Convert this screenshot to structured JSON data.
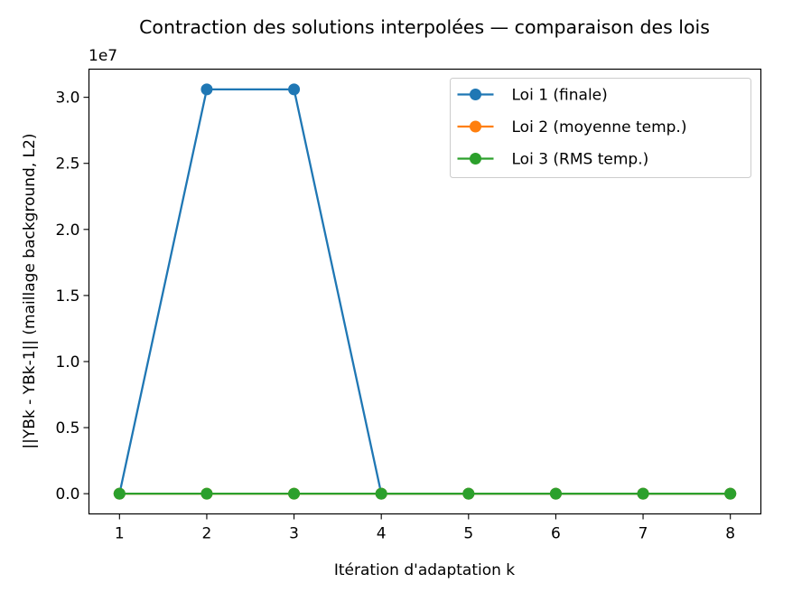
{
  "chart_data": {
    "type": "line",
    "title": "Contraction des solutions interpolées — comparaison des lois",
    "xlabel": "Itération d'adaptation k",
    "ylabel": "||YBk - YBk-1|| (maillage background, L2)",
    "y_offset_text": "1e7",
    "y_multiplier": 10000000,
    "x": [
      1,
      2,
      3,
      4,
      5,
      6,
      7,
      8
    ],
    "x_ticks": [
      "1",
      "2",
      "3",
      "4",
      "5",
      "6",
      "7",
      "8"
    ],
    "y_ticks": [
      "0.0",
      "0.5",
      "1.0",
      "1.5",
      "2.0",
      "2.5",
      "3.0"
    ],
    "xlim": [
      0.65,
      8.35
    ],
    "ylim": [
      -1530000,
      32130000
    ],
    "grid": false,
    "legend_position": "top-right",
    "series": [
      {
        "name": "Loi 1 (finale)",
        "color": "#1f77b4",
        "marker": "circle",
        "values": [
          0,
          30600000,
          30600000,
          0,
          0,
          0,
          0,
          0
        ]
      },
      {
        "name": "Loi 2 (moyenne temp.)",
        "color": "#ff7f0e",
        "marker": "circle",
        "values": [
          0,
          0,
          0,
          0,
          0,
          0,
          0,
          0
        ]
      },
      {
        "name": "Loi 3 (RMS temp.)",
        "color": "#2ca02c",
        "marker": "circle",
        "values": [
          0,
          0,
          0,
          0,
          0,
          0,
          0,
          0
        ]
      }
    ]
  }
}
